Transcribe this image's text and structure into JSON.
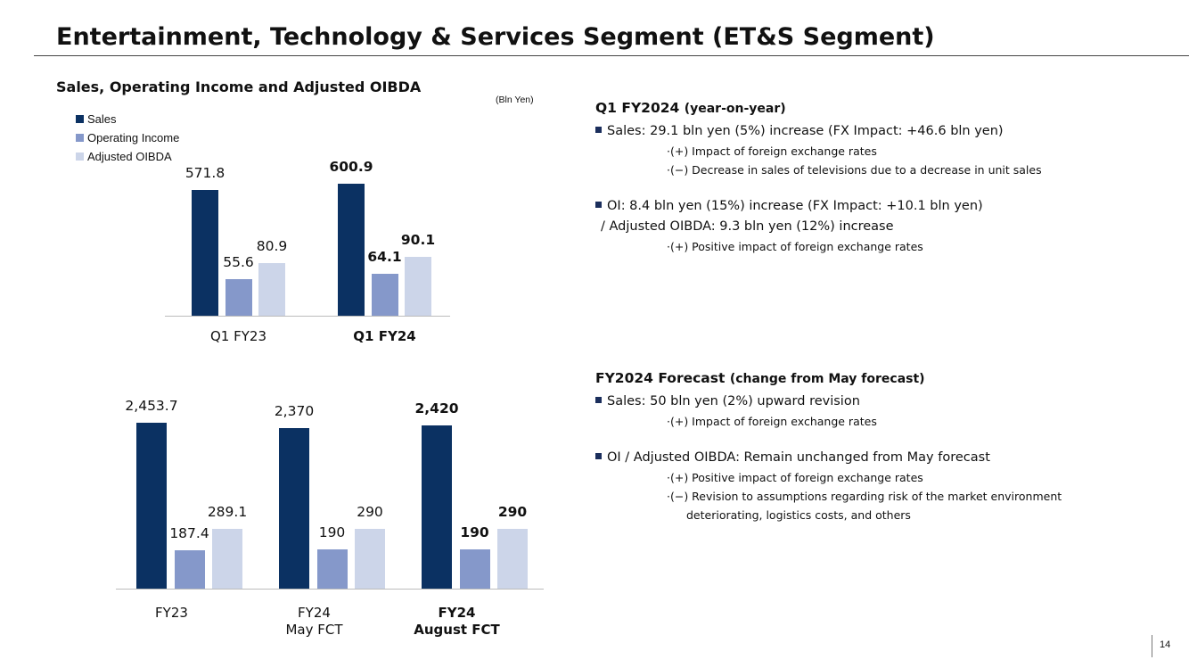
{
  "title": "Entertainment, Technology & Services Segment (ET&S Segment)",
  "subtitle": "Sales, Operating Income and Adjusted OIBDA",
  "unit": "(Bln Yen)",
  "page_number": "14",
  "chart_data": [
    {
      "type": "bar",
      "categories": [
        "Q1 FY23",
        "Q1 FY24"
      ],
      "highlight_index": 1,
      "legend": true,
      "ylim": [
        0,
        211
      ],
      "y2lim": [
        0,
        624
      ],
      "series": [
        {
          "name": "Sales",
          "color": "#0b3162",
          "axis": "y2",
          "values": [
            571.8,
            600.9
          ]
        },
        {
          "name": "Operating Income",
          "color": "#8598ca",
          "values": [
            55.6,
            64.1
          ]
        },
        {
          "name": "Adjusted OIBDA",
          "color": "#ccd5e9",
          "values": [
            80.9,
            90.1
          ]
        }
      ]
    },
    {
      "type": "bar",
      "categories": [
        "FY23",
        "FY24\nMay FCT",
        "FY24\nAugust FCT"
      ],
      "highlight_index": 2,
      "legend": false,
      "ylim": [
        0,
        862
      ],
      "y2lim": [
        0,
        2639
      ],
      "series": [
        {
          "name": "Sales",
          "color": "#0b3162",
          "axis": "y2",
          "values": [
            2453.7,
            2370,
            2420
          ],
          "value_labels": [
            "2,453.7",
            "2,370",
            "2,420"
          ]
        },
        {
          "name": "Operating Income",
          "color": "#8598ca",
          "values": [
            187.4,
            190,
            190
          ]
        },
        {
          "name": "Adjusted OIBDA",
          "color": "#ccd5e9",
          "values": [
            289.1,
            290,
            290
          ]
        }
      ]
    }
  ],
  "sections": [
    {
      "heading": "Q1 FY2024",
      "heading_note": "(year-on-year)",
      "items": [
        {
          "lines": [
            "Sales: 29.1 bln yen (5%) increase (FX Impact: +46.6 bln yen)"
          ],
          "subs": [
            "·(+) Impact of foreign exchange rates",
            "·(−) Decrease in sales of televisions due to a decrease in unit sales"
          ]
        },
        {
          "lines": [
            "OI: 8.4 bln yen (15%) increase (FX Impact: +10.1 bln yen)",
            "/ Adjusted OIBDA: 9.3 bln yen (12%) increase"
          ],
          "subs": [
            "·(+) Positive impact of foreign exchange rates"
          ]
        }
      ]
    },
    {
      "heading": "FY2024 Forecast",
      "heading_note": "(change from May forecast)",
      "items": [
        {
          "lines": [
            "Sales: 50 bln yen (2%) upward revision"
          ],
          "subs": [
            "·(+) Impact of foreign exchange rates"
          ]
        },
        {
          "lines": [
            "OI / Adjusted OIBDA: Remain unchanged from May forecast"
          ],
          "subs": [
            "·(+) Positive impact of foreign exchange rates",
            "·(−) Revision to assumptions regarding risk of the market environment deteriorating, logistics costs, and others"
          ]
        }
      ]
    }
  ]
}
